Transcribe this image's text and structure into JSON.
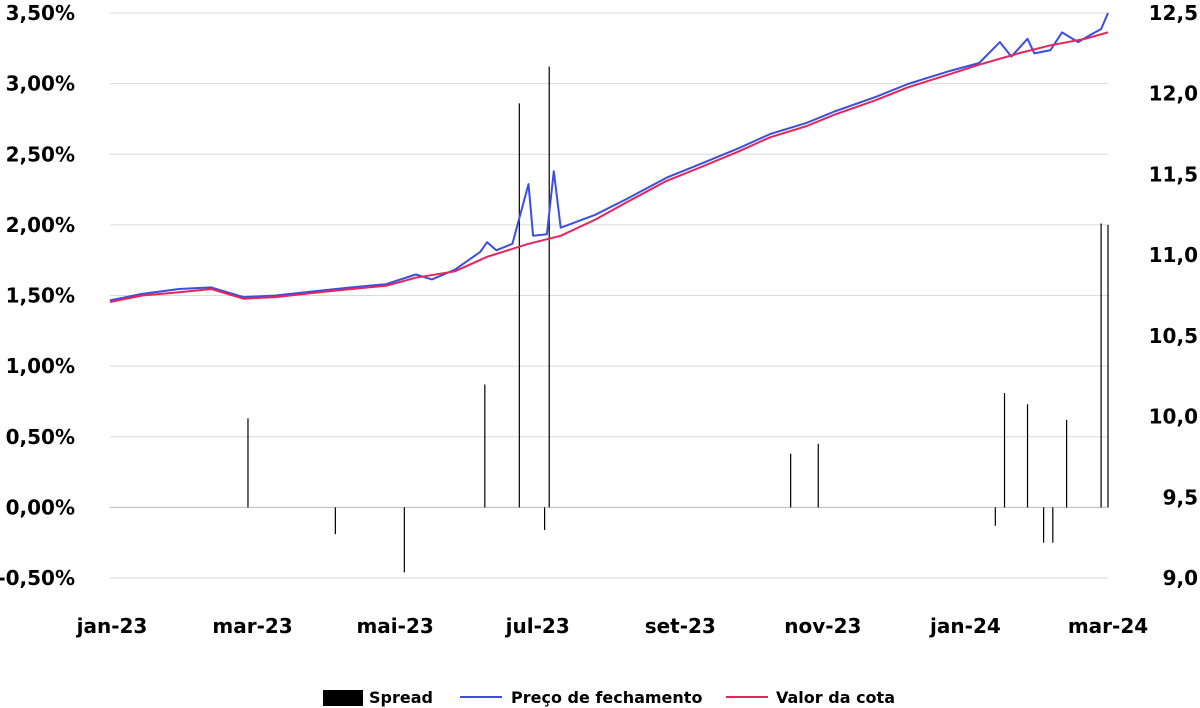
{
  "chart_data": {
    "type": "line",
    "title": "",
    "xlabel": "",
    "ylabel": "",
    "y2label": "",
    "grid": true,
    "legend_position": "bottom",
    "x_ticks": [
      "jan-23",
      "mar-23",
      "mai-23",
      "jul-23",
      "set-23",
      "nov-23",
      "jan-24",
      "mar-24"
    ],
    "x_range": [
      "2023-01-02",
      "2024-03-11"
    ],
    "y_left": {
      "range": [
        -0.5,
        3.5
      ],
      "ticks": [
        "-0,50%",
        "0,00%",
        "0,50%",
        "1,00%",
        "1,50%",
        "2,00%",
        "2,50%",
        "3,00%",
        "3,50%"
      ],
      "tick_values": [
        -0.5,
        0,
        0.5,
        1,
        1.5,
        2,
        2.5,
        3,
        3.5
      ]
    },
    "y_right": {
      "range": [
        9.0,
        12.5
      ],
      "ticks": [
        "9,0",
        "9,5",
        "10,0",
        "10,5",
        "11,0",
        "11,5",
        "12,0",
        "12,5"
      ],
      "tick_values": [
        9.0,
        9.5,
        10.0,
        10.5,
        11.0,
        11.5,
        12.0,
        12.5
      ]
    },
    "series": [
      {
        "name": "Preço de fechamento",
        "axis": "right",
        "color": "#3b4fe0",
        "points": [
          [
            "2023-01-02",
            10.72
          ],
          [
            "2023-01-16",
            10.76
          ],
          [
            "2023-02-01",
            10.79
          ],
          [
            "2023-02-15",
            10.8
          ],
          [
            "2023-03-01",
            10.74
          ],
          [
            "2023-03-15",
            10.75
          ],
          [
            "2023-04-03",
            10.78
          ],
          [
            "2023-04-17",
            10.8
          ],
          [
            "2023-05-02",
            10.82
          ],
          [
            "2023-05-15",
            10.88
          ],
          [
            "2023-05-22",
            10.85
          ],
          [
            "2023-06-01",
            10.91
          ],
          [
            "2023-06-12",
            11.02
          ],
          [
            "2023-06-15",
            11.08
          ],
          [
            "2023-06-19",
            11.03
          ],
          [
            "2023-06-26",
            11.07
          ],
          [
            "2023-07-03",
            11.44
          ],
          [
            "2023-07-05",
            11.12
          ],
          [
            "2023-07-11",
            11.13
          ],
          [
            "2023-07-14",
            11.52
          ],
          [
            "2023-07-17",
            11.17
          ],
          [
            "2023-08-01",
            11.25
          ],
          [
            "2023-08-15",
            11.35
          ],
          [
            "2023-09-01",
            11.48
          ],
          [
            "2023-09-15",
            11.56
          ],
          [
            "2023-10-02",
            11.66
          ],
          [
            "2023-10-16",
            11.75
          ],
          [
            "2023-11-01",
            11.82
          ],
          [
            "2023-11-13",
            11.89
          ],
          [
            "2023-12-01",
            11.98
          ],
          [
            "2023-12-15",
            12.06
          ],
          [
            "2024-01-02",
            12.14
          ],
          [
            "2024-01-15",
            12.19
          ],
          [
            "2024-01-24",
            12.32
          ],
          [
            "2024-01-29",
            12.23
          ],
          [
            "2024-02-05",
            12.34
          ],
          [
            "2024-02-08",
            12.25
          ],
          [
            "2024-02-15",
            12.27
          ],
          [
            "2024-02-20",
            12.38
          ],
          [
            "2024-02-27",
            12.32
          ],
          [
            "2024-03-04",
            12.37
          ],
          [
            "2024-03-08",
            12.4
          ],
          [
            "2024-03-11",
            12.5
          ]
        ]
      },
      {
        "name": "Valor da cota",
        "axis": "right",
        "color": "#e8245a",
        "points": [
          [
            "2023-01-02",
            10.71
          ],
          [
            "2023-01-16",
            10.75
          ],
          [
            "2023-02-01",
            10.77
          ],
          [
            "2023-02-15",
            10.79
          ],
          [
            "2023-03-01",
            10.73
          ],
          [
            "2023-03-15",
            10.74
          ],
          [
            "2023-04-03",
            10.77
          ],
          [
            "2023-04-17",
            10.79
          ],
          [
            "2023-05-02",
            10.81
          ],
          [
            "2023-05-15",
            10.86
          ],
          [
            "2023-06-01",
            10.9
          ],
          [
            "2023-06-15",
            10.99
          ],
          [
            "2023-07-03",
            11.07
          ],
          [
            "2023-07-17",
            11.12
          ],
          [
            "2023-08-01",
            11.22
          ],
          [
            "2023-08-15",
            11.33
          ],
          [
            "2023-09-01",
            11.46
          ],
          [
            "2023-09-15",
            11.54
          ],
          [
            "2023-10-02",
            11.64
          ],
          [
            "2023-10-16",
            11.73
          ],
          [
            "2023-11-01",
            11.8
          ],
          [
            "2023-11-13",
            11.87
          ],
          [
            "2023-12-01",
            11.96
          ],
          [
            "2023-12-15",
            12.04
          ],
          [
            "2024-01-02",
            12.12
          ],
          [
            "2024-01-15",
            12.18
          ],
          [
            "2024-02-01",
            12.25
          ],
          [
            "2024-02-15",
            12.3
          ],
          [
            "2024-03-01",
            12.34
          ],
          [
            "2024-03-11",
            12.38
          ]
        ]
      },
      {
        "name": "Spread",
        "axis": "left",
        "type": "bar",
        "color": "#000000",
        "points": [
          [
            "2023-03-03",
            0.63
          ],
          [
            "2023-06-14",
            0.87
          ],
          [
            "2023-06-29",
            2.86
          ],
          [
            "2023-07-12",
            3.12
          ],
          [
            "2024-01-26",
            0.81
          ],
          [
            "2024-02-05",
            0.73
          ],
          [
            "2024-02-22",
            0.62
          ],
          [
            "2024-03-08",
            2.01
          ],
          [
            "2024-03-11",
            2.0
          ],
          [
            "2023-05-10",
            -0.46
          ],
          [
            "2023-04-10",
            -0.19
          ],
          [
            "2023-07-10",
            -0.16
          ],
          [
            "2024-02-12",
            -0.25
          ],
          [
            "2024-02-16",
            -0.25
          ],
          [
            "2023-11-06",
            0.45
          ],
          [
            "2023-10-25",
            0.38
          ],
          [
            "2024-01-22",
            -0.13
          ]
        ]
      }
    ]
  },
  "legend": [
    {
      "label": "Spread",
      "color": "#000000",
      "kind": "box"
    },
    {
      "label": "Preço de fechamento",
      "color": "#3b4fe0",
      "kind": "line"
    },
    {
      "label": "Valor da cota",
      "color": "#e8245a",
      "kind": "line"
    }
  ]
}
